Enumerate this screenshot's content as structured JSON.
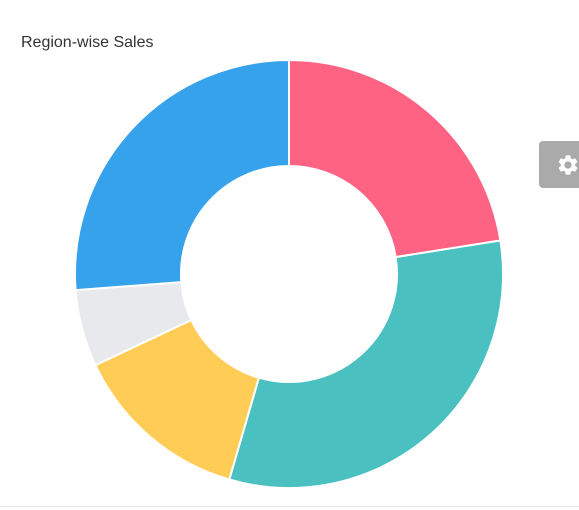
{
  "chart_data": {
    "type": "pie",
    "title": "Region-wise Sales",
    "donut": true,
    "series": [
      {
        "values": [
          22.5,
          32.0,
          13.5,
          5.8,
          26.2
        ]
      }
    ],
    "colors": [
      "#ff6384",
      "#4bc0c0",
      "#ffcd56",
      "#e7e9ed",
      "#36a2eb"
    ],
    "start_angle": "top",
    "direction": "clockwise"
  },
  "settings_tab": {
    "icon": "gear-icon"
  }
}
